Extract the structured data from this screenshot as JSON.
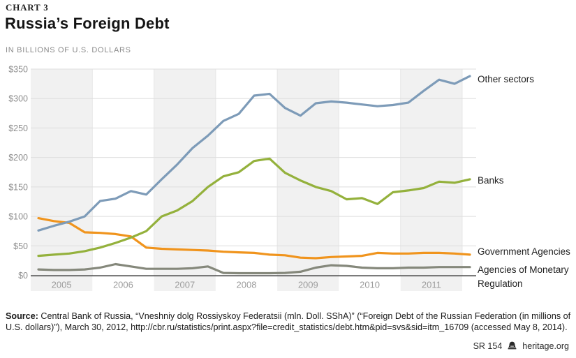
{
  "header": {
    "kicker": "CHART 3",
    "title": "Russia’s Foreign Debt",
    "subtitle": "IN BILLIONS OF U.S. DOLLARS"
  },
  "chart_data": {
    "type": "line",
    "title": "Russia’s Foreign Debt",
    "ylabel": "Billions of U.S. dollars",
    "ylim": [
      0,
      350
    ],
    "grid": "horizontal",
    "y_ticks": [
      "$350",
      "$300",
      "$250",
      "$200",
      "$150",
      "$100",
      "$50",
      "$0"
    ],
    "x_tick_labels": [
      "2005",
      "2006",
      "2007",
      "2008",
      "2009",
      "2010",
      "2011"
    ],
    "shaded_band_years": [
      "2005",
      "2007",
      "2009",
      "2011"
    ],
    "band_color": "#f1f1f1",
    "gridline_color": "#dedede",
    "axis_color": "#4b4b4b",
    "legend_position": "right of line ends",
    "x": [
      "2005 Q1",
      "2005 Q2",
      "2005 Q3",
      "2005 Q4",
      "2006 Q1",
      "2006 Q2",
      "2006 Q3",
      "2006 Q4",
      "2007 Q1",
      "2007 Q2",
      "2007 Q3",
      "2007 Q4",
      "2008 Q1",
      "2008 Q2",
      "2008 Q3",
      "2008 Q4",
      "2009 Q1",
      "2009 Q2",
      "2009 Q3",
      "2009 Q4",
      "2010 Q1",
      "2010 Q2",
      "2010 Q3",
      "2010 Q4",
      "2011 Q1",
      "2011 Q2",
      "2011 Q3",
      "2011 Q4",
      "2012 Q1"
    ],
    "series": [
      {
        "name": "Other sectors",
        "color": "#7d9bb8",
        "values": [
          76,
          84,
          91,
          100,
          126,
          130,
          143,
          137,
          163,
          188,
          216,
          237,
          262,
          274,
          305,
          308,
          284,
          271,
          292,
          295,
          293,
          290,
          287,
          289,
          293,
          313,
          332,
          325,
          338
        ]
      },
      {
        "name": "Banks",
        "color": "#94b13c",
        "values": [
          33,
          35,
          37,
          41,
          47,
          55,
          64,
          75,
          100,
          110,
          126,
          150,
          168,
          175,
          194,
          198,
          174,
          161,
          150,
          143,
          129,
          131,
          121,
          141,
          144,
          148,
          159,
          157,
          163
        ]
      },
      {
        "name": "Government Agencies",
        "color": "#f0941d",
        "values": [
          97,
          92,
          89,
          73,
          72,
          70,
          66,
          47,
          45,
          44,
          43,
          42,
          40,
          39,
          38,
          35,
          34,
          30,
          29,
          31,
          32,
          33,
          38,
          37,
          37,
          38,
          38,
          37,
          35
        ]
      },
      {
        "name": "Agencies of Monetary Regulation",
        "color": "#85887b",
        "values": [
          10,
          9,
          9,
          10,
          13,
          19,
          15,
          11,
          11,
          11,
          12,
          15,
          4,
          3.5,
          3.5,
          3.5,
          4,
          6,
          13,
          17,
          16,
          13,
          12,
          12,
          13,
          13,
          14,
          14,
          14
        ]
      }
    ]
  },
  "source": {
    "label": "Source:",
    "text": " Central Bank of Russia, “Vneshniy dolg Rossiyskoy Federatsii (mln. Doll. SShA)” (“Foreign Debt of the Russian Federation (in millions of U.S. dollars)”), March 30, 2012, http://cbr.ru/statistics/print.aspx?file=credit_statistics/debt.htm&pid=svs&sid=itm_16709 (accessed May 8, 2014)."
  },
  "footer": {
    "report_id": "SR 154",
    "site": "heritage.org"
  }
}
